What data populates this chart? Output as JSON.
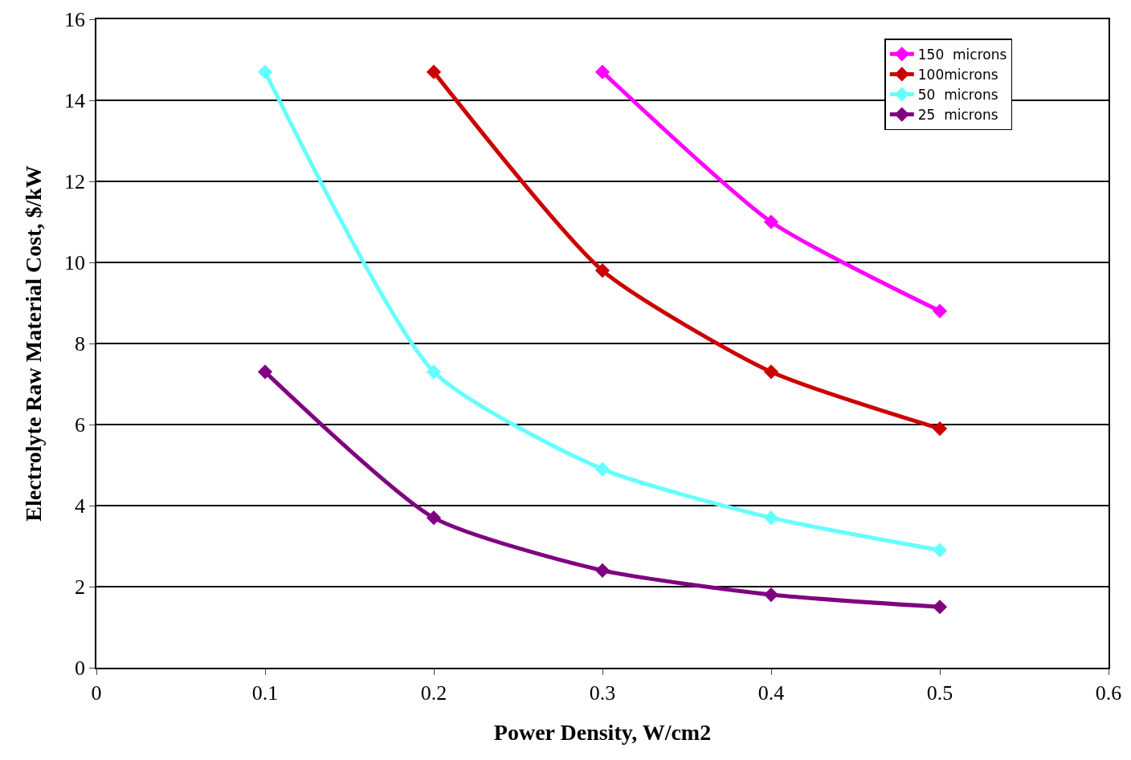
{
  "chart_data": {
    "type": "line",
    "xlabel": "Power Density, W/cm2",
    "ylabel": "Electrolyte Raw Material Cost, $/kW",
    "xlim": [
      0,
      0.6
    ],
    "xticks": [
      0,
      0.1,
      0.2,
      0.3,
      0.4,
      0.5,
      0.6
    ],
    "ylim": [
      0,
      16
    ],
    "yticks": [
      0,
      2,
      4,
      6,
      8,
      10,
      12,
      14,
      16
    ],
    "grid": "y",
    "legend": "top right",
    "marker": "diamond",
    "line_style": "solid",
    "series": [
      {
        "name": "150  microns",
        "color": "#ff00ff",
        "x": [
          0.3,
          0.4,
          0.5
        ],
        "values": [
          14.7,
          11.0,
          8.8
        ]
      },
      {
        "name": "100microns",
        "color": "#cc0000",
        "x": [
          0.2,
          0.3,
          0.4,
          0.5
        ],
        "values": [
          14.7,
          9.8,
          7.3,
          5.9
        ]
      },
      {
        "name": "50  microns",
        "color": "#66ffff",
        "x": [
          0.1,
          0.2,
          0.3,
          0.4,
          0.5
        ],
        "values": [
          14.7,
          7.3,
          4.9,
          3.7,
          2.9
        ]
      },
      {
        "name": "25  microns",
        "color": "#800080",
        "x": [
          0.1,
          0.2,
          0.3,
          0.4,
          0.5
        ],
        "values": [
          7.3,
          3.7,
          2.4,
          1.8,
          1.5
        ]
      }
    ]
  }
}
